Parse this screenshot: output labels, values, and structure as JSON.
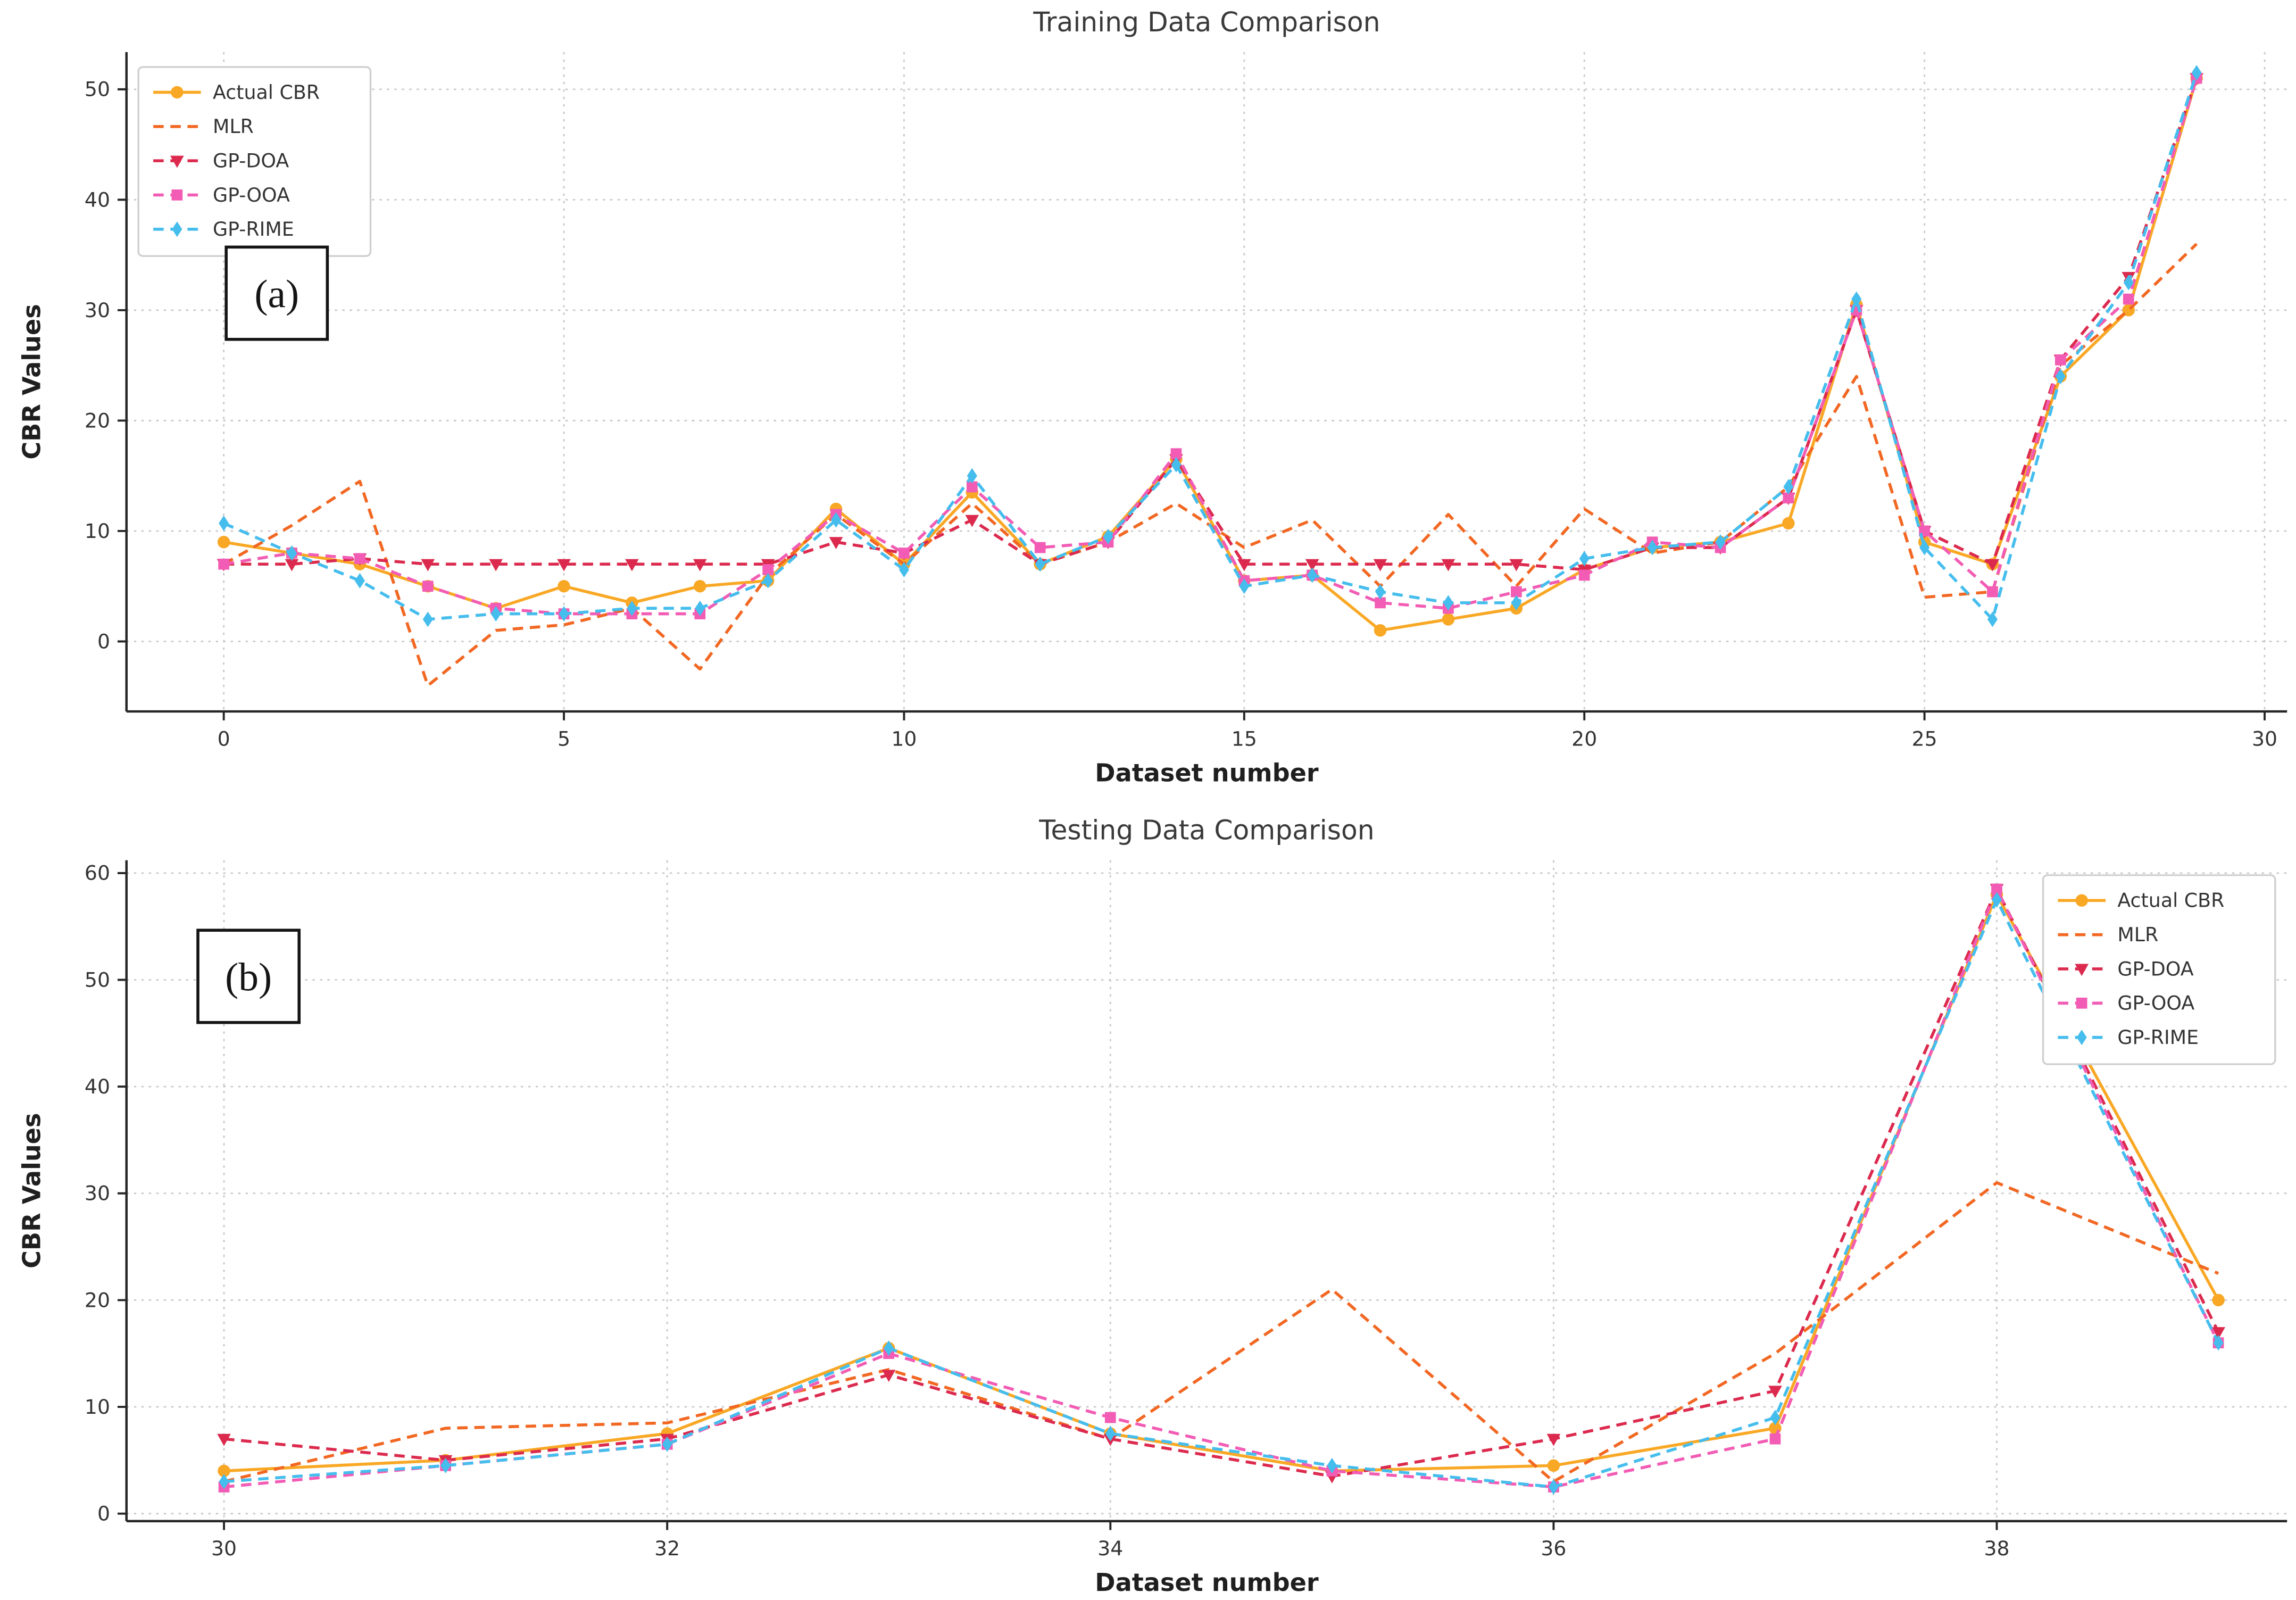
{
  "figure_background": "#ffffff",
  "chart_data": [
    {
      "id": "training",
      "type": "line",
      "title": "Training Data Comparison",
      "panel_label": "(a)",
      "xlabel": "Dataset number",
      "ylabel": "CBR Values",
      "grid": "dotted",
      "legend_position": "top-left",
      "x_ticks": [
        0,
        5,
        10,
        15,
        20,
        25,
        30
      ],
      "y_ticks": [
        0,
        10,
        20,
        30,
        40,
        50
      ],
      "x_range": [
        -1.43,
        30.33
      ],
      "y_range": [
        -6.34,
        53.37
      ],
      "x": [
        0,
        1,
        2,
        3,
        4,
        5,
        6,
        7,
        8,
        9,
        10,
        11,
        12,
        13,
        14,
        15,
        16,
        17,
        18,
        19,
        20,
        21,
        22,
        23,
        24,
        25,
        26,
        27,
        28,
        29
      ],
      "series": [
        {
          "name": "Actual CBR",
          "color": "#F9A825",
          "line_style": "solid",
          "marker": "circle",
          "values": [
            9,
            8,
            7,
            5,
            3,
            5,
            3.5,
            5,
            5.5,
            12,
            7,
            13.5,
            7,
            9.5,
            16.5,
            5.5,
            6,
            1,
            2,
            3,
            6.5,
            8.5,
            9,
            10.7,
            30.5,
            9,
            7,
            24,
            30,
            51
          ]
        },
        {
          "name": "MLR",
          "color": "#F26722",
          "line_style": "dashed",
          "marker": "none",
          "values": [
            7,
            10.5,
            14.5,
            -4,
            1,
            1.5,
            3,
            -2.5,
            6,
            11.5,
            7,
            12.5,
            7,
            9,
            12.5,
            8.5,
            11,
            5,
            11.5,
            5,
            12,
            8,
            9,
            14,
            24,
            4,
            4.5,
            25,
            30,
            36
          ]
        },
        {
          "name": "GP-DOA",
          "color": "#DC2A4E",
          "line_style": "dashed",
          "marker": "triangle-down",
          "values": [
            7,
            7,
            7.5,
            7,
            7,
            7,
            7,
            7,
            7,
            9,
            8,
            11,
            7,
            9,
            16.5,
            7,
            7,
            7,
            7,
            7,
            6.5,
            8.5,
            8.5,
            13,
            30,
            10,
            7,
            25.5,
            33,
            51
          ]
        },
        {
          "name": "GP-OOA",
          "color": "#F25CB4",
          "line_style": "dashed",
          "marker": "square",
          "values": [
            7,
            8,
            7.5,
            5,
            3,
            2.5,
            2.5,
            2.5,
            6.5,
            11.5,
            8,
            14,
            8.5,
            9,
            17,
            5.5,
            6,
            3.5,
            3,
            4.5,
            6,
            9,
            8.5,
            13,
            30,
            10,
            4.5,
            25.5,
            31,
            51
          ]
        },
        {
          "name": "GP-RIME",
          "color": "#45BDED",
          "line_style": "dashed",
          "marker": "diamond",
          "values": [
            10.7,
            8,
            5.5,
            2,
            2.5,
            2.5,
            3,
            3,
            5.5,
            11,
            6.5,
            15,
            7,
            9.5,
            16,
            5,
            6,
            4.5,
            3.5,
            3.5,
            7.5,
            8.5,
            9,
            14,
            31,
            8.5,
            2,
            24,
            32.5,
            51.5
          ]
        }
      ]
    },
    {
      "id": "testing",
      "type": "line",
      "title": "Testing Data Comparison",
      "panel_label": "(b)",
      "xlabel": "Dataset number",
      "ylabel": "CBR Values",
      "grid": "dotted",
      "legend_position": "top-right",
      "x_ticks": [
        30,
        32,
        34,
        36,
        38
      ],
      "y_ticks": [
        0,
        10,
        20,
        30,
        40,
        50,
        60
      ],
      "x_range": [
        29.56,
        39.31
      ],
      "y_range": [
        -0.7,
        61.2
      ],
      "x": [
        30,
        31,
        32,
        33,
        34,
        35,
        36,
        37,
        38,
        39
      ],
      "series": [
        {
          "name": "Actual CBR",
          "color": "#F9A825",
          "line_style": "solid",
          "marker": "circle",
          "values": [
            4,
            5,
            7.5,
            15.5,
            7.5,
            4,
            4.5,
            8,
            58,
            20
          ]
        },
        {
          "name": "MLR",
          "color": "#F26722",
          "line_style": "dashed",
          "marker": "none",
          "values": [
            3,
            8,
            8.5,
            13.5,
            7,
            21,
            3,
            15,
            31,
            22.5
          ]
        },
        {
          "name": "GP-DOA",
          "color": "#DC2A4E",
          "line_style": "dashed",
          "marker": "triangle-down",
          "values": [
            7,
            5,
            7,
            13,
            7,
            3.5,
            7,
            11.5,
            58.5,
            17
          ]
        },
        {
          "name": "GP-OOA",
          "color": "#F25CB4",
          "line_style": "dashed",
          "marker": "square",
          "values": [
            2.5,
            4.5,
            6.5,
            15,
            9,
            4,
            2.5,
            7,
            58.5,
            16
          ]
        },
        {
          "name": "GP-RIME",
          "color": "#45BDED",
          "line_style": "dashed",
          "marker": "diamond",
          "values": [
            3,
            4.5,
            6.5,
            15.5,
            7.5,
            4.5,
            2.5,
            9,
            57.5,
            16
          ]
        }
      ]
    }
  ]
}
